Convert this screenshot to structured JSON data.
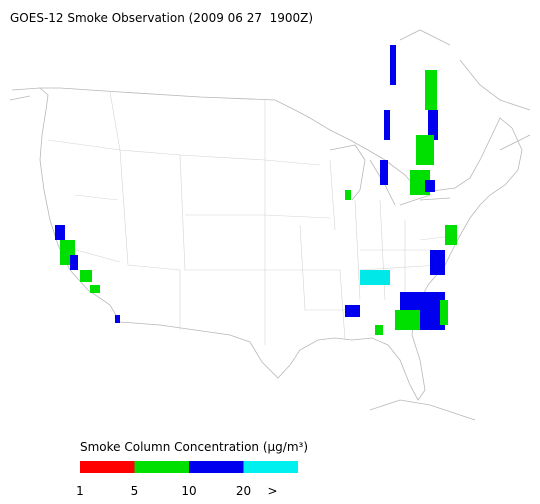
{
  "title": "GOES-12 Smoke Observation (2009 06 27  1900Z)",
  "legend": {
    "title": "Smoke Column Concentration (μg/m³)",
    "colors": [
      "#ff0000",
      "#00e000",
      "#0000ee",
      "#00f0f0"
    ],
    "ticks": [
      "1",
      "5",
      "10",
      "20",
      ">"
    ]
  }
}
